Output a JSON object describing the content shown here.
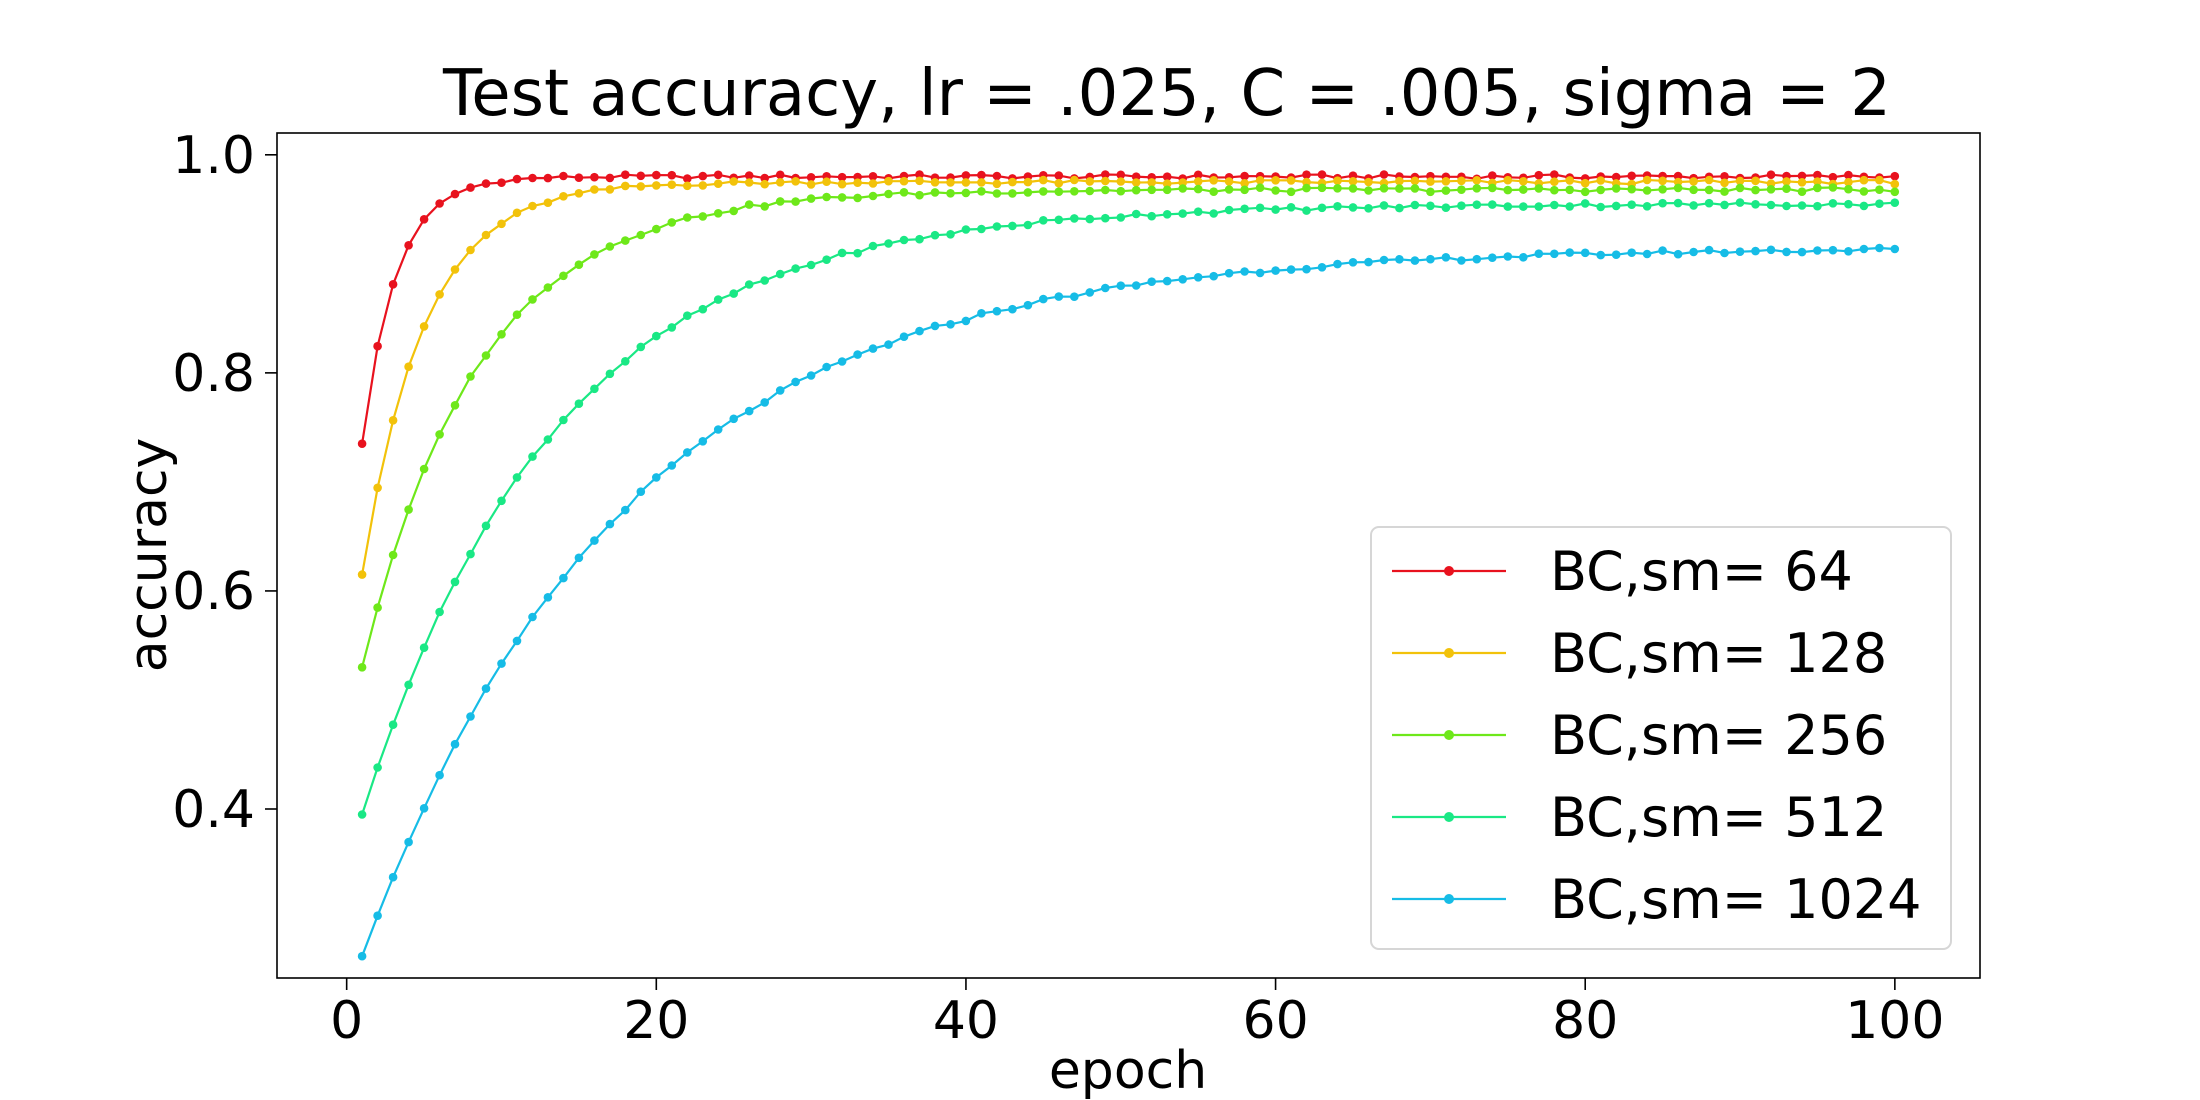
{
  "chart_data": {
    "type": "line",
    "title": "Test accuracy, lr = .025, C = .005, sigma = 2",
    "xlabel": "epoch",
    "ylabel": "accuracy",
    "xlim": [
      -4.5,
      105.5
    ],
    "ylim": [
      0.245,
      1.02
    ],
    "xticks": [
      0,
      20,
      40,
      60,
      80,
      100
    ],
    "yticks": [
      0.4,
      0.6,
      0.8,
      1.0
    ],
    "xtick_labels": [
      "0",
      "20",
      "40",
      "60",
      "80",
      "100"
    ],
    "ytick_labels": [
      "0.4",
      "0.6",
      "0.8",
      "1.0"
    ],
    "grid": false,
    "legend_position": "lower-right",
    "x": "1..100 (epochs)",
    "series": [
      {
        "name": "BC,sm= 64",
        "color": "#e8121e",
        "a": 0.735,
        "f": 0.98,
        "tau": 2.2
      },
      {
        "name": "BC,sm= 128",
        "color": "#f2c20a",
        "a": 0.615,
        "f": 0.975,
        "tau": 4.0
      },
      {
        "name": "BC,sm= 256",
        "color": "#6ee81a",
        "a": 0.53,
        "f": 0.968,
        "tau": 7.5
      },
      {
        "name": "BC,sm= 512",
        "color": "#1ae885",
        "a": 0.395,
        "f": 0.955,
        "tau": 12.5
      },
      {
        "name": "BC,sm= 1024",
        "color": "#16bce6",
        "a": 0.265,
        "f": 0.915,
        "tau": 17.0
      }
    ]
  }
}
